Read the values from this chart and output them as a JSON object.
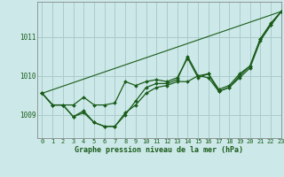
{
  "title": "Graphe pression niveau de la mer (hPa)",
  "bg_color": "#cce8e8",
  "grid_color": "#aacccc",
  "line_color": "#1a5c1a",
  "xlim": [
    -0.5,
    23
  ],
  "ylim": [
    1008.4,
    1011.9
  ],
  "yticks": [
    1009,
    1010,
    1011
  ],
  "xticks": [
    0,
    1,
    2,
    3,
    4,
    5,
    6,
    7,
    8,
    9,
    10,
    11,
    12,
    13,
    14,
    15,
    16,
    17,
    18,
    19,
    20,
    21,
    22,
    23
  ],
  "series1": [
    1009.55,
    1009.25,
    1009.25,
    1009.25,
    1009.45,
    1009.25,
    1009.25,
    1009.3,
    1009.85,
    1009.75,
    1009.85,
    1009.9,
    1009.85,
    1009.95,
    1010.45,
    1009.95,
    1010.05,
    1009.6,
    1009.7,
    1010.0,
    1010.25,
    1010.95,
    1011.3,
    1011.65
  ],
  "series2": [
    1009.55,
    1009.25,
    1009.25,
    1008.95,
    1009.05,
    1008.8,
    1008.7,
    1008.7,
    1009.05,
    1009.25,
    1009.55,
    1009.7,
    1009.75,
    1009.85,
    1009.85,
    1010.0,
    1010.05,
    1009.65,
    1009.75,
    1010.05,
    1010.25,
    1010.95,
    1011.35,
    1011.65
  ],
  "series3": [
    1009.55,
    1009.25,
    1009.25,
    1008.95,
    1009.1,
    1008.8,
    1008.7,
    1008.7,
    1009.0,
    1009.35,
    1009.7,
    1009.8,
    1009.8,
    1009.9,
    1010.5,
    1010.0,
    1009.95,
    1009.6,
    1009.7,
    1009.95,
    1010.2,
    1010.9,
    1011.3,
    1011.65
  ],
  "series4_straight": [
    1009.55,
    1011.65
  ]
}
